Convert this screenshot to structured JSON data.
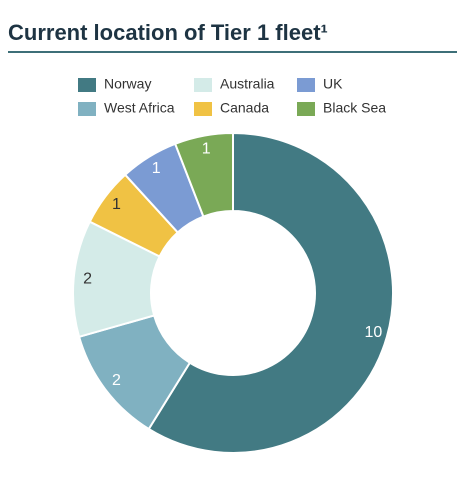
{
  "chart_data": {
    "type": "donut",
    "title": "Current location of Tier 1 fleet¹",
    "categories": [
      "Norway",
      "West Africa",
      "Australia",
      "Canada",
      "UK",
      "Black Sea"
    ],
    "values": [
      10,
      2,
      2,
      1,
      1,
      1
    ],
    "colors": [
      "#427a83",
      "#80b1c1",
      "#d4ebe8",
      "#f0c244",
      "#7b9bd3",
      "#7aa956"
    ]
  }
}
